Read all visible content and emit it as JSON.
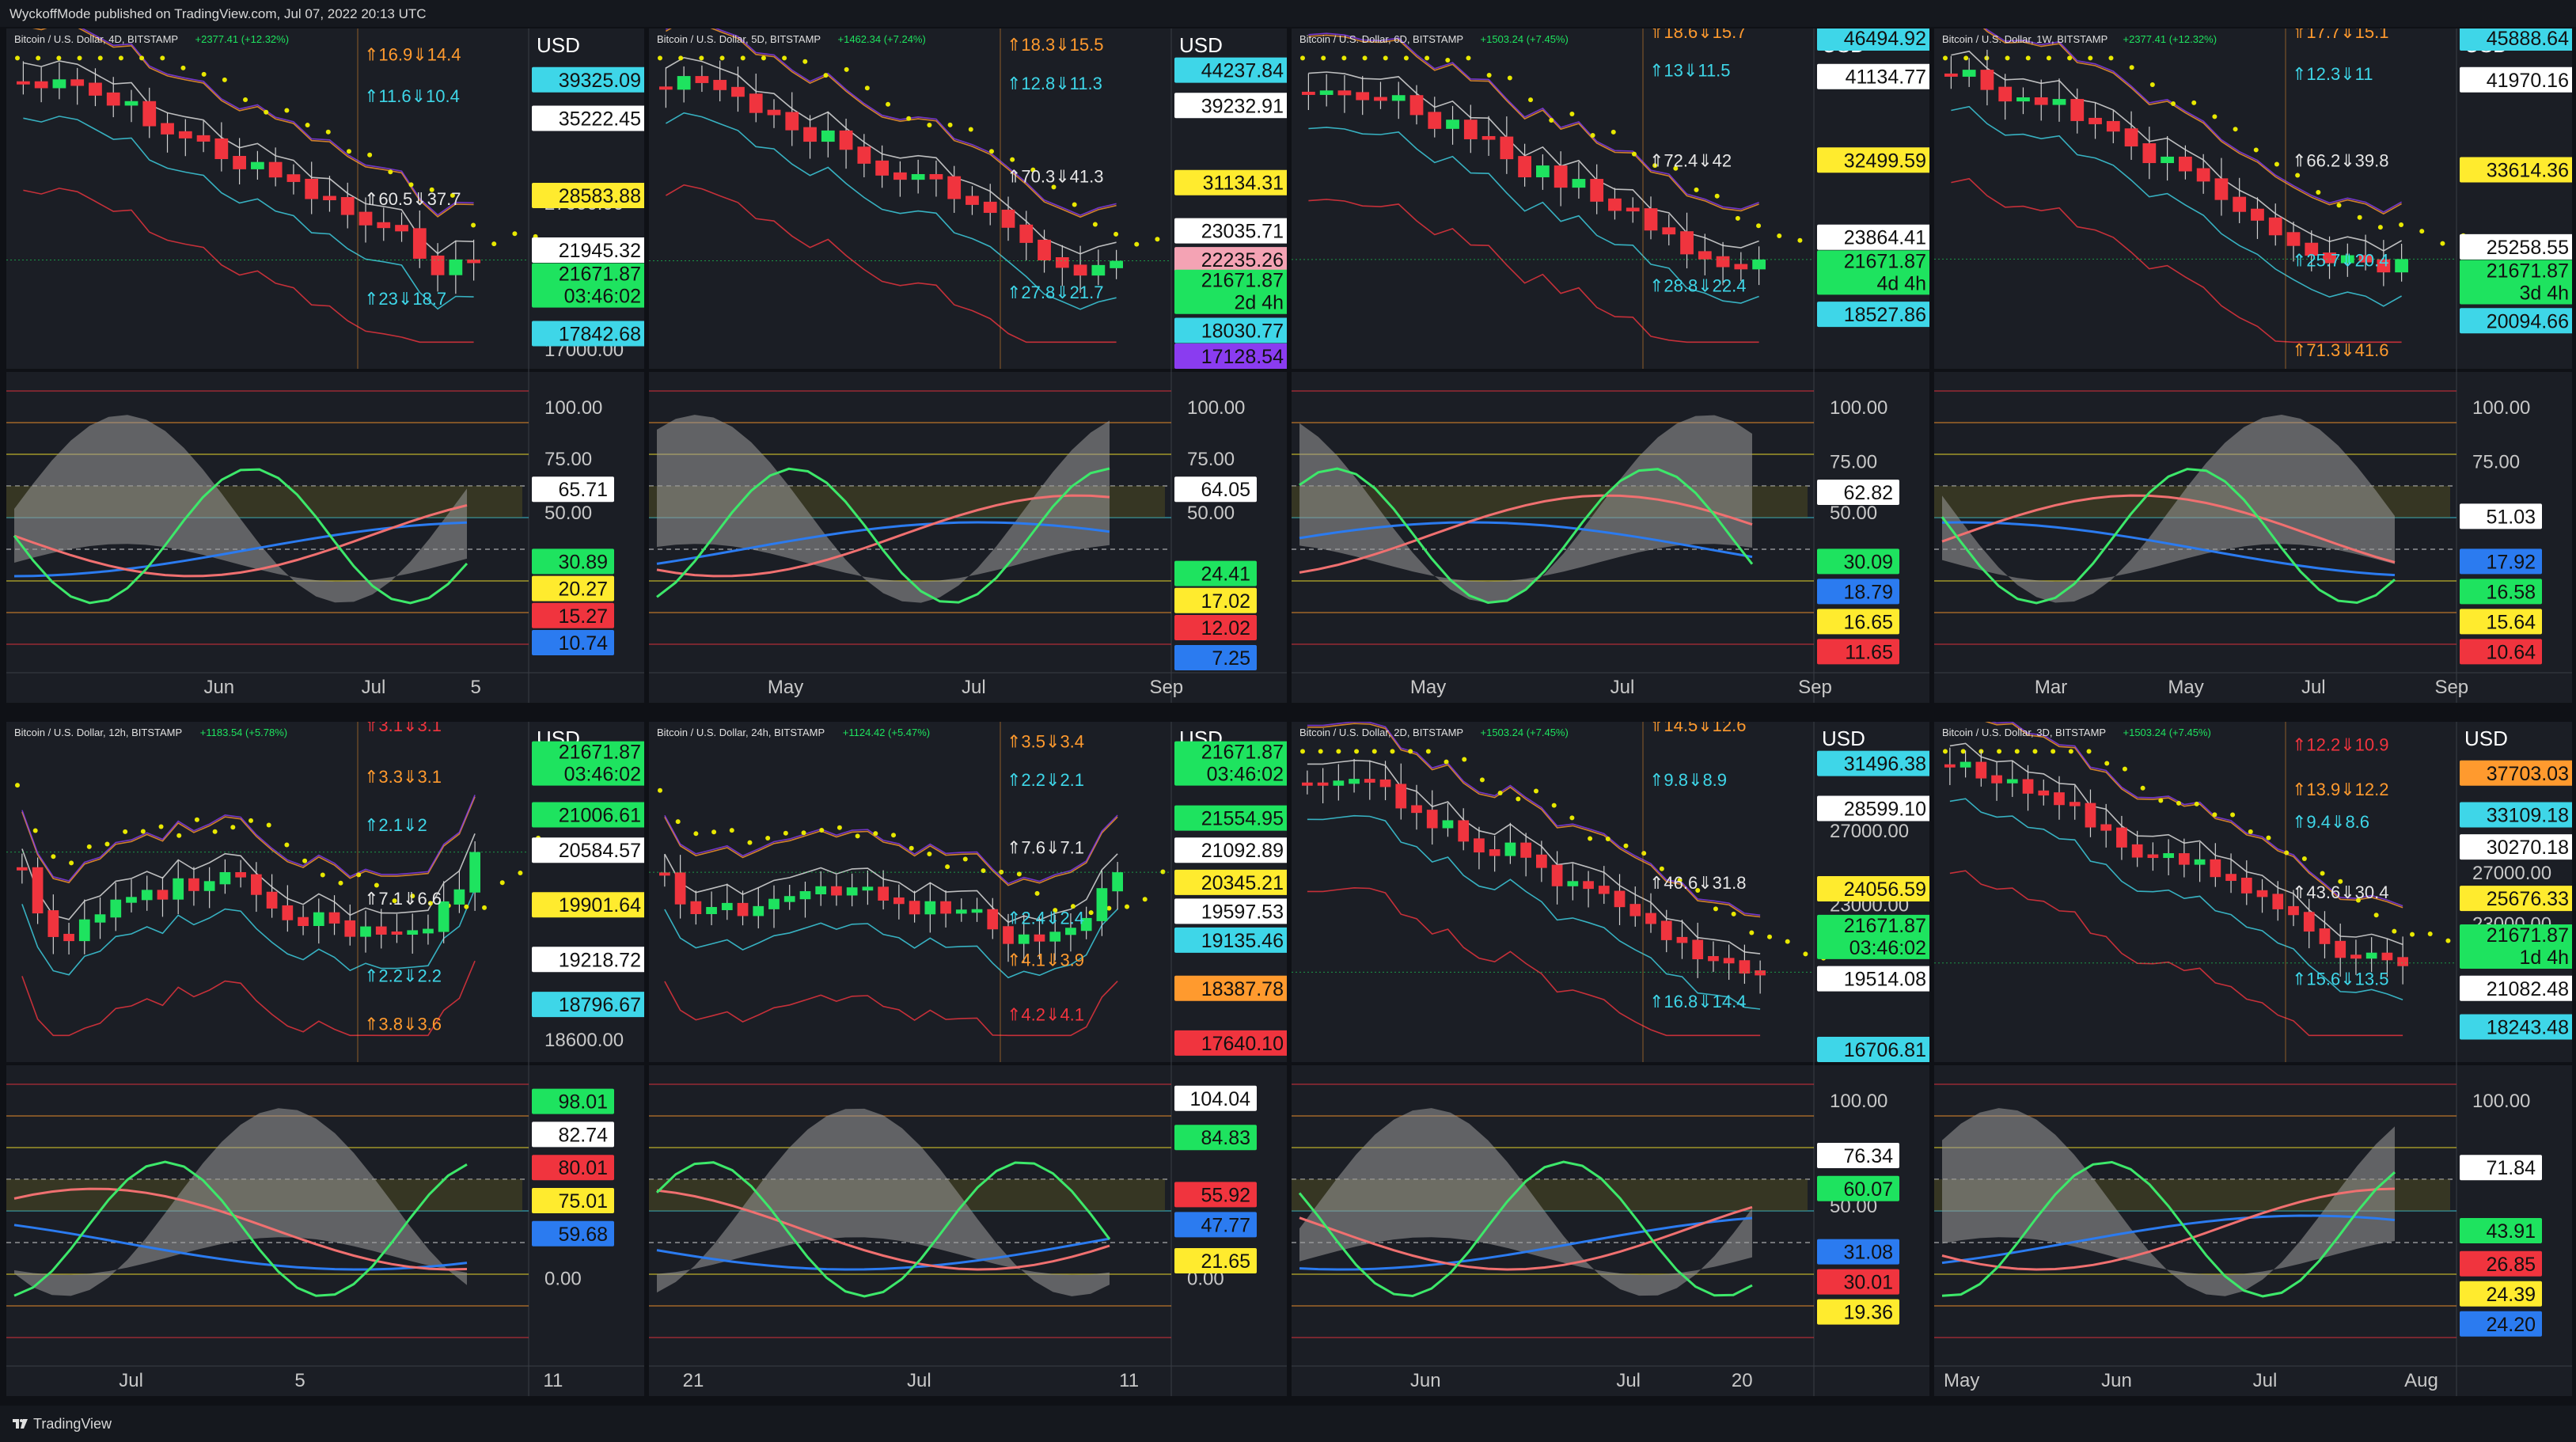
{
  "header": {
    "text": "WyckoffMode published on TradingView.com, Jul 07, 2022 20:13 UTC"
  },
  "footer": {
    "brand": "TradingView",
    "logo_icon": "tradingview-logo-icon"
  },
  "colors": {
    "bg": "#1b1e25",
    "up": "#1ee35f",
    "down": "#f0343e",
    "ma": "#e8e800",
    "pink": "#f4a3b4",
    "axis": "#c8c8c8"
  },
  "panels": [
    {
      "id": "p4d",
      "col": 0,
      "row": 0,
      "currency": "USD",
      "title": "Bitcoin / U.S. Dollar, 4D, BITSTAMP",
      "change": "+2377.41 (+12.32%)",
      "arrows": [
        {
          "text": "⇑16.9⇓14.4",
          "color": "#ff9a2e",
          "y": 0.07
        },
        {
          "text": "⇑11.6⇓10.4",
          "color": "#3ed6e8",
          "y": 0.2
        },
        {
          "text": "⇑60.5⇓37.7",
          "color": "#e6e6e6",
          "y": 0.52
        },
        {
          "text": "⇑23⇓18.7",
          "color": "#3ed6e8",
          "y": 0.83
        }
      ],
      "price_ticks": [
        {
          "text": "27000.00",
          "y": 0.535
        },
        {
          "text": "17000.00",
          "y": 0.99
        }
      ],
      "price_tags": [
        {
          "text": "39325.09",
          "bg": "#3ed6e8",
          "y": 0.13
        },
        {
          "text": "35222.45",
          "bg": "#ffffff",
          "y": 0.25
        },
        {
          "text": "28583.88",
          "bg": "#ffeb2e",
          "y": 0.49
        },
        {
          "text": "21945.32",
          "bg": "#ffffff",
          "y": 0.66
        },
        {
          "text": "21671.87",
          "sub": "03:46:02",
          "bg": "#1ee35f",
          "y": 0.77
        },
        {
          "text": "17842.68",
          "bg": "#3ed6e8",
          "y": 0.92
        }
      ],
      "osc_ticks": [
        {
          "text": "100.00",
          "y": 0.14
        },
        {
          "text": "75.00",
          "y": 0.31
        },
        {
          "text": "50.00",
          "y": 0.49
        }
      ],
      "osc_tags": [
        {
          "text": "65.71",
          "bg": "#ffffff",
          "y": 0.39
        },
        {
          "text": "30.89",
          "bg": "#1ee35f",
          "y": 0.63
        },
        {
          "text": "20.27",
          "bg": "#ffeb2e",
          "y": 0.72
        },
        {
          "text": "15.27",
          "bg": "#f0343e",
          "y": 0.81
        },
        {
          "text": "10.74",
          "bg": "#2b7bf0",
          "y": 0.9
        }
      ],
      "time_labels": [
        {
          "text": "Jun",
          "x": 0.31
        },
        {
          "text": "Jul",
          "x": 0.57
        },
        {
          "text": "5",
          "x": 0.75
        }
      ]
    },
    {
      "id": "p5d",
      "col": 1,
      "row": 0,
      "currency": "USD",
      "title": "Bitcoin / U.S. Dollar, 5D, BITSTAMP",
      "change": "+1462.34 (+7.24%)",
      "arrows": [
        {
          "text": "⇑18.3⇓15.5",
          "color": "#ff9a2e",
          "y": 0.04
        },
        {
          "text": "⇑12.8⇓11.3",
          "color": "#3ed6e8",
          "y": 0.16
        },
        {
          "text": "⇑70.3⇓41.3",
          "color": "#e6e6e6",
          "y": 0.45
        },
        {
          "text": "⇑27.8⇓21.7",
          "color": "#3ed6e8",
          "y": 0.81
        }
      ],
      "price_ticks": [],
      "price_tags": [
        {
          "text": "44237.84",
          "bg": "#3ed6e8",
          "y": 0.1
        },
        {
          "text": "39232.91",
          "bg": "#ffffff",
          "y": 0.21
        },
        {
          "text": "31134.31",
          "bg": "#ffeb2e",
          "y": 0.45
        },
        {
          "text": "23035.71",
          "bg": "#ffffff",
          "y": 0.6
        },
        {
          "text": "22235.26",
          "bg": "#f4a3b4",
          "y": 0.69
        },
        {
          "text": "21671.87",
          "sub": "2d 4h",
          "bg": "#1ee35f",
          "y": 0.79
        },
        {
          "text": "18030.77",
          "bg": "#3ed6e8",
          "y": 0.91
        },
        {
          "text": "17128.54",
          "bg": "#8a3cf0",
          "y": 0.99
        }
      ],
      "osc_ticks": [
        {
          "text": "100.00",
          "y": 0.14
        },
        {
          "text": "75.00",
          "y": 0.31
        },
        {
          "text": "50.00",
          "y": 0.49
        }
      ],
      "osc_tags": [
        {
          "text": "64.05",
          "bg": "#ffffff",
          "y": 0.39
        },
        {
          "text": "24.41",
          "bg": "#1ee35f",
          "y": 0.67
        },
        {
          "text": "17.02",
          "bg": "#ffeb2e",
          "y": 0.76
        },
        {
          "text": "12.02",
          "bg": "#f0343e",
          "y": 0.85
        },
        {
          "text": "7.25",
          "bg": "#2b7bf0",
          "y": 0.95
        }
      ],
      "time_labels": [
        {
          "text": "May",
          "x": 0.18
        },
        {
          "text": "Jul",
          "x": 0.5
        },
        {
          "text": "Sep",
          "x": 0.81
        }
      ]
    },
    {
      "id": "p6d",
      "col": 2,
      "row": 0,
      "currency": "USD",
      "title": "Bitcoin / U.S. Dollar, 6D, BITSTAMP",
      "change": "+1503.24 (+7.45%)",
      "arrows": [
        {
          "text": "⇑18.6⇓15.7",
          "color": "#ff9a2e",
          "y": 0.0
        },
        {
          "text": "⇑13⇓11.5",
          "color": "#3ed6e8",
          "y": 0.12
        },
        {
          "text": "⇑72.4⇓42",
          "color": "#e6e6e6",
          "y": 0.4
        },
        {
          "text": "⇑28.8⇓22.4",
          "color": "#3ed6e8",
          "y": 0.79
        }
      ],
      "price_ticks": [],
      "price_tags": [
        {
          "text": "46494.92",
          "bg": "#3ed6e8",
          "y": 0.0
        },
        {
          "text": "41134.77",
          "bg": "#ffffff",
          "y": 0.12
        },
        {
          "text": "32499.59",
          "bg": "#ffeb2e",
          "y": 0.38
        },
        {
          "text": "23864.41",
          "bg": "#ffffff",
          "y": 0.62
        },
        {
          "text": "21671.87",
          "sub": "4d 4h",
          "bg": "#1ee35f",
          "y": 0.73
        },
        {
          "text": "18527.86",
          "bg": "#3ed6e8",
          "y": 0.86
        }
      ],
      "osc_ticks": [
        {
          "text": "100.00",
          "y": 0.14
        },
        {
          "text": "75.00",
          "y": 0.32
        },
        {
          "text": "50.00",
          "y": 0.49
        }
      ],
      "osc_tags": [
        {
          "text": "62.82",
          "bg": "#ffffff",
          "y": 0.4
        },
        {
          "text": "30.09",
          "bg": "#1ee35f",
          "y": 0.63
        },
        {
          "text": "18.79",
          "bg": "#2b7bf0",
          "y": 0.73
        },
        {
          "text": "16.65",
          "bg": "#ffeb2e",
          "y": 0.83
        },
        {
          "text": "11.65",
          "bg": "#f0343e",
          "y": 0.93
        }
      ],
      "time_labels": [
        {
          "text": "May",
          "x": 0.18
        },
        {
          "text": "Jul",
          "x": 0.51
        },
        {
          "text": "Sep",
          "x": 0.82
        }
      ]
    },
    {
      "id": "p1w",
      "col": 3,
      "row": 0,
      "currency": "USD",
      "title": "Bitcoin / U.S. Dollar, 1W, BITSTAMP",
      "change": "+2377.41 (+12.32%)",
      "arrows": [
        {
          "text": "⇑17.7⇓15.1",
          "color": "#ff9a2e",
          "y": 0.0
        },
        {
          "text": "⇑12.3⇓11",
          "color": "#3ed6e8",
          "y": 0.13
        },
        {
          "text": "⇑66.2⇓39.8",
          "color": "#e6e6e6",
          "y": 0.4
        },
        {
          "text": "⇑25.7⇓20.4",
          "color": "#3ed6e8",
          "y": 0.71
        },
        {
          "text": "⇑71.3⇓41.6",
          "color": "#ff9a2e",
          "y": 0.99
        }
      ],
      "price_ticks": [
        {
          "text": "32000.00",
          "y": 0.45
        }
      ],
      "price_tags": [
        {
          "text": "45888.64",
          "bg": "#3ed6e8",
          "y": 0.0
        },
        {
          "text": "41970.16",
          "bg": "#ffffff",
          "y": 0.13
        },
        {
          "text": "33614.36",
          "bg": "#ffeb2e",
          "y": 0.41
        },
        {
          "text": "25258.55",
          "bg": "#ffffff",
          "y": 0.65
        },
        {
          "text": "21671.87",
          "sub": "3d 4h",
          "bg": "#1ee35f",
          "y": 0.76
        },
        {
          "text": "20094.66",
          "bg": "#3ed6e8",
          "y": 0.88
        }
      ],
      "osc_ticks": [
        {
          "text": "100.00",
          "y": 0.14
        },
        {
          "text": "75.00",
          "y": 0.32
        }
      ],
      "osc_tags": [
        {
          "text": "51.03",
          "bg": "#ffffff",
          "y": 0.48
        },
        {
          "text": "17.92",
          "bg": "#2b7bf0",
          "y": 0.63
        },
        {
          "text": "16.58",
          "bg": "#1ee35f",
          "y": 0.73
        },
        {
          "text": "15.64",
          "bg": "#ffeb2e",
          "y": 0.83
        },
        {
          "text": "10.64",
          "bg": "#f0343e",
          "y": 0.93
        }
      ],
      "time_labels": [
        {
          "text": "Mar",
          "x": 0.15
        },
        {
          "text": "May",
          "x": 0.37
        },
        {
          "text": "Jul",
          "x": 0.59
        },
        {
          "text": "Sep",
          "x": 0.81
        }
      ]
    },
    {
      "id": "p12h",
      "col": 0,
      "row": 1,
      "currency": "USD",
      "title": "Bitcoin / U.S. Dollar, 12h, BITSTAMP",
      "change": "+1183.54 (+5.78%)",
      "arrows": [
        {
          "text": "⇑3.1⇓3.1",
          "color": "#f0343e",
          "y": 0.0
        },
        {
          "text": "⇑3.3⇓3.1",
          "color": "#ff9a2e",
          "y": 0.16
        },
        {
          "text": "⇑2.1⇓2",
          "color": "#3ed6e8",
          "y": 0.31
        },
        {
          "text": "⇑7.1⇓6.6",
          "color": "#e6e6e6",
          "y": 0.54
        },
        {
          "text": "⇑2.2⇓2.2",
          "color": "#3ed6e8",
          "y": 0.78
        },
        {
          "text": "⇑3.8⇓3.6",
          "color": "#ff9a2e",
          "y": 0.93
        }
      ],
      "price_ticks": [
        {
          "text": "18600.00",
          "y": 0.98
        }
      ],
      "price_tags": [
        {
          "text": "21671.87",
          "sub": "03:46:02",
          "bg": "#1ee35f",
          "y": 0.1
        },
        {
          "text": "21006.61",
          "bg": "#1ee35f",
          "y": 0.26
        },
        {
          "text": "20584.57",
          "bg": "#ffffff",
          "y": 0.37
        },
        {
          "text": "19901.64",
          "bg": "#ffeb2e",
          "y": 0.54
        },
        {
          "text": "19218.72",
          "bg": "#ffffff",
          "y": 0.71
        },
        {
          "text": "18796.67",
          "bg": "#3ed6e8",
          "y": 0.85
        }
      ],
      "osc_ticks": [
        {
          "text": "0.00",
          "y": 0.73
        }
      ],
      "osc_tags": [
        {
          "text": "98.01",
          "bg": "#1ee35f",
          "y": 0.12
        },
        {
          "text": "82.74",
          "bg": "#ffffff",
          "y": 0.23
        },
        {
          "text": "80.01",
          "bg": "#f0343e",
          "y": 0.34
        },
        {
          "text": "75.01",
          "bg": "#ffeb2e",
          "y": 0.45
        },
        {
          "text": "59.68",
          "bg": "#2b7bf0",
          "y": 0.56
        }
      ],
      "time_labels": [
        {
          "text": "Jul",
          "x": 0.17
        },
        {
          "text": "5",
          "x": 0.46
        },
        {
          "text": "11",
          "x": 0.87
        }
      ]
    },
    {
      "id": "p24h",
      "col": 1,
      "row": 1,
      "currency": "USD",
      "title": "Bitcoin / U.S. Dollar, 24h, BITSTAMP",
      "change": "+1124.42 (+5.47%)",
      "arrows": [
        {
          "text": "⇑3.5⇓3.4",
          "color": "#ff9a2e",
          "y": 0.05
        },
        {
          "text": "⇑2.2⇓2.1",
          "color": "#3ed6e8",
          "y": 0.17
        },
        {
          "text": "⇑7.6⇓7.1",
          "color": "#e6e6e6",
          "y": 0.38
        },
        {
          "text": "⇑2.4⇓2.4",
          "color": "#3ed6e8",
          "y": 0.6
        },
        {
          "text": "⇑4.1⇓3.9",
          "color": "#ff9a2e",
          "y": 0.73
        },
        {
          "text": "⇑4.2⇓4.1",
          "color": "#f0343e",
          "y": 0.9
        }
      ],
      "price_ticks": [],
      "price_tags": [
        {
          "text": "21671.87",
          "sub": "03:46:02",
          "bg": "#1ee35f",
          "y": 0.1
        },
        {
          "text": "21554.95",
          "bg": "#1ee35f",
          "y": 0.27
        },
        {
          "text": "21092.89",
          "bg": "#ffffff",
          "y": 0.37
        },
        {
          "text": "20345.21",
          "bg": "#ffeb2e",
          "y": 0.47
        },
        {
          "text": "19597.53",
          "bg": "#ffffff",
          "y": 0.56
        },
        {
          "text": "19135.46",
          "bg": "#3ed6e8",
          "y": 0.65
        },
        {
          "text": "18387.78",
          "bg": "#ff9a2e",
          "y": 0.8
        },
        {
          "text": "17640.10",
          "bg": "#f0343e",
          "y": 0.97
        }
      ],
      "osc_ticks": [
        {
          "text": "0.00",
          "y": 0.73
        }
      ],
      "osc_tags": [
        {
          "text": "104.04",
          "bg": "#ffffff",
          "y": 0.11
        },
        {
          "text": "84.83",
          "bg": "#1ee35f",
          "y": 0.24
        },
        {
          "text": "55.92",
          "bg": "#f0343e",
          "y": 0.43
        },
        {
          "text": "47.77",
          "bg": "#2b7bf0",
          "y": 0.53
        },
        {
          "text": "21.65",
          "bg": "#ffeb2e",
          "y": 0.65
        }
      ],
      "time_labels": [
        {
          "text": "21",
          "x": 0.04
        },
        {
          "text": "Jul",
          "x": 0.41
        },
        {
          "text": "11",
          "x": 0.76
        }
      ]
    },
    {
      "id": "p2d",
      "col": 2,
      "row": 1,
      "currency": "USD",
      "title": "Bitcoin / U.S. Dollar, 2D, BITSTAMP",
      "change": "+1503.24 (+7.45%)",
      "arrows": [
        {
          "text": "⇑14.5⇓12.6",
          "color": "#ff9a2e",
          "y": 0.0
        },
        {
          "text": "⇑9.8⇓8.9",
          "color": "#3ed6e8",
          "y": 0.17
        },
        {
          "text": "⇑46.6⇓31.8",
          "color": "#e6e6e6",
          "y": 0.49
        },
        {
          "text": "⇑16.8⇓14.4",
          "color": "#3ed6e8",
          "y": 0.86
        }
      ],
      "price_ticks": [
        {
          "text": "27000.00",
          "y": 0.33
        },
        {
          "text": "23000.00",
          "y": 0.56
        }
      ],
      "price_tags": [
        {
          "text": "31496.38",
          "bg": "#3ed6e8",
          "y": 0.1
        },
        {
          "text": "28599.10",
          "bg": "#ffffff",
          "y": 0.24
        },
        {
          "text": "24056.59",
          "bg": "#ffeb2e",
          "y": 0.49
        },
        {
          "text": "21671.87",
          "sub": "03:46:02",
          "bg": "#1ee35f",
          "y": 0.64
        },
        {
          "text": "19514.08",
          "bg": "#ffffff",
          "y": 0.77
        },
        {
          "text": "16706.81",
          "bg": "#3ed6e8",
          "y": 0.99
        }
      ],
      "osc_ticks": [
        {
          "text": "100.00",
          "y": 0.14
        },
        {
          "text": "50.00",
          "y": 0.49
        }
      ],
      "osc_tags": [
        {
          "text": "76.34",
          "bg": "#ffffff",
          "y": 0.3
        },
        {
          "text": "60.07",
          "bg": "#1ee35f",
          "y": 0.41
        },
        {
          "text": "31.08",
          "bg": "#2b7bf0",
          "y": 0.62
        },
        {
          "text": "30.01",
          "bg": "#f0343e",
          "y": 0.72
        },
        {
          "text": "19.36",
          "bg": "#ffeb2e",
          "y": 0.82
        }
      ],
      "time_labels": [
        {
          "text": "Jun",
          "x": 0.18
        },
        {
          "text": "Jul",
          "x": 0.52
        },
        {
          "text": "20",
          "x": 0.71
        }
      ]
    },
    {
      "id": "p3d",
      "col": 3,
      "row": 1,
      "currency": "USD",
      "title": "Bitcoin / U.S. Dollar, 3D, BITSTAMP",
      "change": "+1503.24 (+7.45%)",
      "arrows": [
        {
          "text": "⇑12.2⇓10.9",
          "color": "#f0343e",
          "y": 0.06
        },
        {
          "text": "⇑13.9⇓12.2",
          "color": "#ff9a2e",
          "y": 0.2
        },
        {
          "text": "⇑9.4⇓8.6",
          "color": "#3ed6e8",
          "y": 0.3
        },
        {
          "text": "⇑43.6⇓30.4",
          "color": "#e6e6e6",
          "y": 0.52
        },
        {
          "text": "⇑15.6⇓13.5",
          "color": "#3ed6e8",
          "y": 0.79
        }
      ],
      "price_ticks": [
        {
          "text": "27000.00",
          "y": 0.46
        },
        {
          "text": "23000.00",
          "y": 0.62
        }
      ],
      "price_tags": [
        {
          "text": "37703.03",
          "bg": "#ff9a2e",
          "y": 0.13
        },
        {
          "text": "33109.18",
          "bg": "#3ed6e8",
          "y": 0.26
        },
        {
          "text": "30270.18",
          "bg": "#ffffff",
          "y": 0.36
        },
        {
          "text": "25676.33",
          "bg": "#ffeb2e",
          "y": 0.52
        },
        {
          "text": "21671.87",
          "sub": "1d 4h",
          "bg": "#1ee35f",
          "y": 0.67
        },
        {
          "text": "21082.48",
          "bg": "#ffffff",
          "y": 0.8
        },
        {
          "text": "18243.48",
          "bg": "#3ed6e8",
          "y": 0.92
        }
      ],
      "osc_ticks": [
        {
          "text": "100.00",
          "y": 0.14
        }
      ],
      "osc_tags": [
        {
          "text": "71.84",
          "bg": "#ffffff",
          "y": 0.34
        },
        {
          "text": "43.91",
          "bg": "#1ee35f",
          "y": 0.55
        },
        {
          "text": "26.85",
          "bg": "#f0343e",
          "y": 0.66
        },
        {
          "text": "24.39",
          "bg": "#ffeb2e",
          "y": 0.76
        },
        {
          "text": "24.20",
          "bg": "#2b7bf0",
          "y": 0.86
        }
      ],
      "time_labels": [
        {
          "text": "May",
          "x": 0.0
        },
        {
          "text": "Jun",
          "x": 0.26
        },
        {
          "text": "Jul",
          "x": 0.51
        },
        {
          "text": "Aug",
          "x": 0.76
        }
      ]
    }
  ]
}
